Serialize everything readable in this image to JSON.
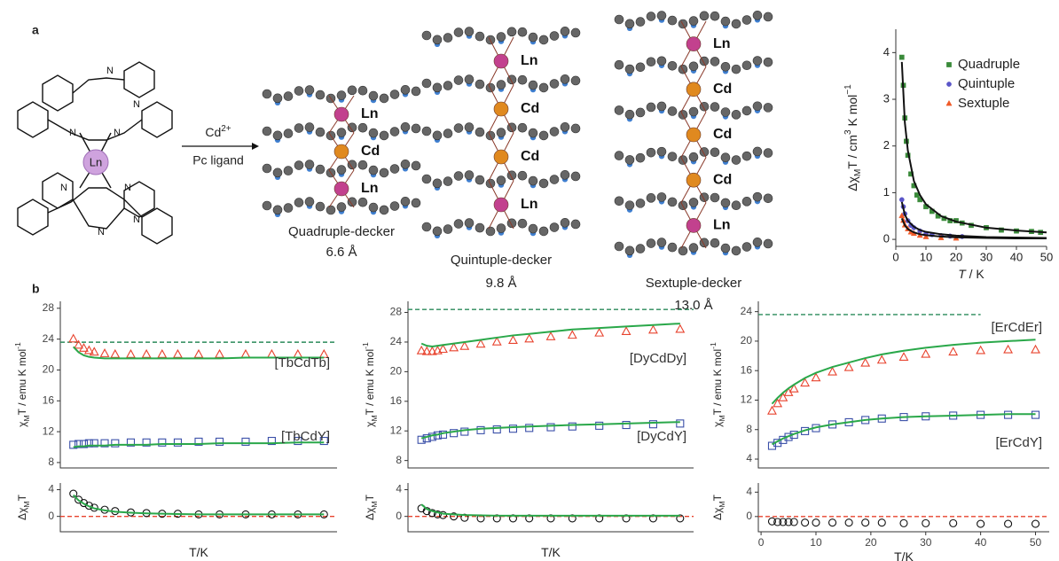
{
  "panels": [
    "a",
    "b"
  ],
  "molecule": {
    "center": "Ln",
    "atom": "N"
  },
  "reaction": {
    "reagent": "Cd",
    "charge": "2+",
    "ligand": "Pc ligand"
  },
  "metal_colors": {
    "Ln": "#c2418e",
    "Cd": "#e0891f"
  },
  "stacks": [
    {
      "caption": "Quadruple-decker",
      "distance": "6.6 Å",
      "metals": [
        "Ln",
        "Cd",
        "Ln"
      ]
    },
    {
      "caption": "Quintuple-decker",
      "distance": "9.8 Å",
      "metals": [
        "Ln",
        "Cd",
        "Cd",
        "Ln"
      ]
    },
    {
      "caption": "Sextuple-decker",
      "distance": "13.0 Å",
      "metals": [
        "Ln",
        "Cd",
        "Cd",
        "Cd",
        "Ln"
      ]
    }
  ],
  "chart_data": [
    {
      "type": "scatter",
      "xlim": [
        0,
        50
      ],
      "xticks": [
        0,
        10,
        20,
        30,
        40,
        50
      ],
      "ylim": [
        -0.15,
        4.5
      ],
      "yticks": [
        0,
        1,
        2,
        3,
        4
      ],
      "xlabel": [
        {
          "text": "T",
          "style": "italic"
        },
        {
          "text": " / K"
        }
      ],
      "ylabel": [
        {
          "text": "Δχ"
        },
        {
          "text": "M",
          "style": "sub"
        },
        {
          "text": "T / cm"
        },
        {
          "text": "3",
          "style": "sup"
        },
        {
          "text": " K mol"
        },
        {
          "text": "−1",
          "style": "sup"
        }
      ],
      "legend": "top-right",
      "series": [
        {
          "name": "Quadruple",
          "color": "#3a8a3a",
          "marker": "square",
          "x": [
            2,
            2.5,
            3,
            3.5,
            4,
            5,
            6,
            7,
            8,
            10,
            12,
            14,
            16,
            18,
            20,
            22,
            25,
            30,
            35,
            40,
            45,
            48
          ],
          "values": [
            3.9,
            3.3,
            2.6,
            2.1,
            1.8,
            1.4,
            1.15,
            0.95,
            0.85,
            0.7,
            0.6,
            0.5,
            0.45,
            0.4,
            0.4,
            0.35,
            0.3,
            0.25,
            0.2,
            0.18,
            0.17,
            0.15
          ]
        },
        {
          "name": "Quintuple",
          "color": "#5a55c8",
          "marker": "circle",
          "x": [
            2,
            2.5,
            3,
            4,
            5,
            6,
            8,
            10,
            12,
            15,
            18,
            22
          ],
          "values": [
            0.85,
            0.7,
            0.55,
            0.4,
            0.3,
            0.25,
            0.18,
            0.12,
            0.1,
            0.08,
            0.07,
            0.06
          ]
        },
        {
          "name": "Sextuple",
          "color": "#f05a28",
          "marker": "triangle",
          "x": [
            2,
            2.5,
            3,
            4,
            5,
            6,
            8,
            10,
            15,
            20
          ],
          "values": [
            0.5,
            0.4,
            0.3,
            0.22,
            0.15,
            0.12,
            0.08,
            0.05,
            0.03,
            0.02
          ]
        },
        {
          "color": "#111111",
          "marker": "line",
          "x": [
            2,
            3,
            4,
            6,
            8,
            10,
            15,
            20,
            30,
            40,
            50
          ],
          "values": [
            3.8,
            2.5,
            1.9,
            1.25,
            0.95,
            0.75,
            0.5,
            0.38,
            0.25,
            0.19,
            0.15
          ]
        },
        {
          "color": "#111111",
          "marker": "line",
          "x": [
            2,
            3,
            4,
            6,
            8,
            10,
            15,
            20,
            30,
            40,
            50
          ],
          "values": [
            0.8,
            0.53,
            0.4,
            0.27,
            0.2,
            0.16,
            0.11,
            0.08,
            0.05,
            0.04,
            0.03
          ]
        },
        {
          "color": "#111111",
          "marker": "line",
          "x": [
            2,
            3,
            4,
            6,
            8,
            10,
            15,
            20,
            30,
            40,
            50
          ],
          "values": [
            0.45,
            0.3,
            0.22,
            0.15,
            0.11,
            0.09,
            0.06,
            0.045,
            0.03,
            0.02,
            0.02
          ]
        }
      ]
    },
    {
      "type": "scatter",
      "xlim": [
        -0.5,
        52.5
      ],
      "ylim": [
        7.3,
        28.9
      ],
      "yticks": [
        8,
        12,
        16,
        20,
        24,
        28
      ],
      "ylabel": [
        {
          "text": "χ"
        },
        {
          "text": "M",
          "style": "sub"
        },
        {
          "text": "T / emu K mol"
        },
        {
          "text": "-1",
          "style": "sup"
        }
      ],
      "hline": 23.6,
      "hline_color": "#2a8a5a",
      "annotations": [
        "[TbCdTb]",
        "[TbCdY]"
      ],
      "x": [
        2,
        3,
        4,
        5,
        6,
        8,
        10,
        13,
        16,
        19,
        22,
        26,
        30,
        35,
        40,
        45,
        50
      ],
      "series": [
        {
          "color": "#e8432e",
          "marker": "triangle",
          "hollow": true,
          "values": [
            24,
            23.2,
            22.8,
            22.5,
            22.3,
            22.1,
            22,
            22,
            22,
            22,
            22,
            22,
            22,
            22,
            22,
            22,
            22
          ]
        },
        {
          "color": "#2aa84a",
          "marker": "line",
          "values": [
            23,
            22.3,
            21.9,
            21.7,
            21.6,
            21.5,
            21.5,
            21.5,
            21.5,
            21.5,
            21.5,
            21.5,
            21.5,
            21.6,
            21.6,
            21.6,
            21.6
          ]
        },
        {
          "color": "#3a4fa8",
          "marker": "square",
          "hollow": true,
          "values": [
            10.3,
            10.4,
            10.4,
            10.5,
            10.5,
            10.5,
            10.5,
            10.6,
            10.6,
            10.6,
            10.6,
            10.7,
            10.7,
            10.7,
            10.8,
            10.8,
            10.8
          ]
        },
        {
          "color": "#2aa84a",
          "marker": "line",
          "values": [
            10,
            10.1,
            10.1,
            10.2,
            10.2,
            10.2,
            10.3,
            10.3,
            10.3,
            10.4,
            10.4,
            10.4,
            10.5,
            10.5,
            10.5,
            10.6,
            10.6
          ]
        }
      ]
    },
    {
      "type": "scatter",
      "xlim": [
        -0.5,
        52.5
      ],
      "ylim": [
        -2.3,
        5
      ],
      "yticks": [
        0,
        4
      ],
      "ylabel": [
        {
          "text": "Δχ"
        },
        {
          "text": "M",
          "style": "sub"
        },
        {
          "text": "T"
        }
      ],
      "xlabel": [
        {
          "text": "T/K"
        }
      ],
      "hline": 0,
      "hline_color": "#e8432e",
      "x": [
        2,
        3,
        4,
        5,
        6,
        8,
        10,
        13,
        16,
        19,
        22,
        26,
        30,
        35,
        40,
        45,
        50
      ],
      "series": [
        {
          "color": "#111111",
          "marker": "circle",
          "hollow": true,
          "values": [
            3.4,
            2.5,
            2,
            1.6,
            1.3,
            1,
            0.8,
            0.6,
            0.5,
            0.4,
            0.4,
            0.3,
            0.3,
            0.3,
            0.3,
            0.3,
            0.3
          ]
        },
        {
          "color": "#2aa84a",
          "marker": "line",
          "values": [
            3.2,
            2.4,
            1.9,
            1.5,
            1.2,
            0.9,
            0.7,
            0.55,
            0.45,
            0.4,
            0.35,
            0.3,
            0.3,
            0.3,
            0.3,
            0.3,
            0.3
          ]
        }
      ]
    },
    {
      "type": "scatter",
      "xlim": [
        -0.5,
        52.5
      ],
      "ylim": [
        7,
        29.5
      ],
      "yticks": [
        8,
        12,
        16,
        20,
        24,
        28
      ],
      "ylabel": [
        {
          "text": "χ"
        },
        {
          "text": "M",
          "style": "sub"
        },
        {
          "text": "T / emu K mol"
        },
        {
          "text": "-1",
          "style": "sup"
        }
      ],
      "hline": 28.4,
      "hline_color": "#2a8a5a",
      "annotations": [
        "[DyCdDy]",
        "[DyCdY]"
      ],
      "x": [
        2,
        3,
        4,
        5,
        6,
        8,
        10,
        13,
        16,
        19,
        22,
        26,
        30,
        35,
        40,
        45,
        50
      ],
      "series": [
        {
          "color": "#e8432e",
          "marker": "triangle",
          "hollow": true,
          "values": [
            22.8,
            22.7,
            22.7,
            22.8,
            23,
            23.2,
            23.4,
            23.7,
            24,
            24.2,
            24.4,
            24.7,
            24.9,
            25.2,
            25.4,
            25.6,
            25.7
          ]
        },
        {
          "color": "#2aa84a",
          "marker": "line",
          "values": [
            23.8,
            23.5,
            23.4,
            23.5,
            23.6,
            23.8,
            24,
            24.3,
            24.6,
            24.9,
            25.1,
            25.4,
            25.7,
            25.9,
            26.1,
            26.3,
            26.5
          ]
        },
        {
          "color": "#3a4fa8",
          "marker": "square",
          "hollow": true,
          "values": [
            10.8,
            11,
            11.2,
            11.4,
            11.5,
            11.7,
            11.9,
            12.1,
            12.2,
            12.3,
            12.4,
            12.5,
            12.6,
            12.7,
            12.8,
            12.9,
            13
          ]
        },
        {
          "color": "#2aa84a",
          "marker": "line",
          "values": [
            11,
            11.2,
            11.4,
            11.5,
            11.7,
            11.9,
            12.1,
            12.3,
            12.4,
            12.5,
            12.6,
            12.7,
            12.8,
            12.9,
            13,
            13.1,
            13.2
          ]
        }
      ]
    },
    {
      "type": "scatter",
      "xlim": [
        -0.5,
        52.5
      ],
      "ylim": [
        -2.3,
        5
      ],
      "yticks": [
        0,
        4
      ],
      "ylabel": [
        {
          "text": "Δχ"
        },
        {
          "text": "M",
          "style": "sub"
        },
        {
          "text": "T"
        }
      ],
      "xlabel": [
        {
          "text": "T/K"
        }
      ],
      "hline": 0,
      "hline_color": "#e8432e",
      "x": [
        2,
        3,
        4,
        5,
        6,
        8,
        10,
        13,
        16,
        19,
        22,
        26,
        30,
        35,
        40,
        45,
        50
      ],
      "series": [
        {
          "color": "#111111",
          "marker": "circle",
          "hollow": true,
          "values": [
            1.2,
            0.8,
            0.5,
            0.3,
            0.2,
            0,
            -0.2,
            -0.3,
            -0.3,
            -0.3,
            -0.3,
            -0.3,
            -0.3,
            -0.3,
            -0.3,
            -0.3,
            -0.3
          ]
        },
        {
          "color": "#2aa84a",
          "marker": "line",
          "values": [
            1.8,
            1.1,
            0.8,
            0.6,
            0.4,
            0.3,
            0.2,
            0.15,
            0.1,
            0.1,
            0.1,
            0.1,
            0.1,
            0.1,
            0.1,
            0.1,
            0.1
          ]
        }
      ]
    },
    {
      "type": "scatter",
      "xlim": [
        -0.5,
        52.5
      ],
      "ylim": [
        2.8,
        25.4
      ],
      "yticks": [
        4,
        8,
        12,
        16,
        20,
        24
      ],
      "ylabel": [
        {
          "text": "χ"
        },
        {
          "text": "M",
          "style": "sub"
        },
        {
          "text": "T / emu K mol"
        },
        {
          "text": "-1",
          "style": "sup"
        }
      ],
      "hline": 23.6,
      "hline_xmax": 40,
      "hline_color": "#2a8a5a",
      "annotations": [
        "[ErCdEr]",
        "[ErCdY]"
      ],
      "x": [
        2,
        3,
        4,
        5,
        6,
        8,
        10,
        13,
        16,
        19,
        22,
        26,
        30,
        35,
        40,
        45,
        50
      ],
      "series": [
        {
          "color": "#e8432e",
          "marker": "triangle",
          "hollow": true,
          "values": [
            10.5,
            11.5,
            12.3,
            13,
            13.5,
            14.3,
            15,
            15.8,
            16.4,
            17,
            17.4,
            17.8,
            18.2,
            18.5,
            18.7,
            18.8,
            18.8
          ]
        },
        {
          "color": "#2aa84a",
          "marker": "line",
          "values": [
            11.5,
            12.3,
            13,
            13.6,
            14.1,
            15,
            15.7,
            16.5,
            17.1,
            17.7,
            18.2,
            18.7,
            19.1,
            19.5,
            19.8,
            20,
            20.2
          ]
        },
        {
          "color": "#3a4fa8",
          "marker": "square",
          "hollow": true,
          "values": [
            5.8,
            6.2,
            6.6,
            7,
            7.3,
            7.8,
            8.2,
            8.7,
            9,
            9.3,
            9.5,
            9.7,
            9.8,
            9.9,
            10,
            10,
            10
          ]
        },
        {
          "color": "#2aa84a",
          "marker": "line",
          "values": [
            6,
            6.4,
            6.8,
            7.1,
            7.4,
            7.9,
            8.3,
            8.7,
            9,
            9.3,
            9.5,
            9.7,
            9.8,
            9.9,
            10,
            10.1,
            10.1
          ]
        }
      ]
    },
    {
      "type": "scatter",
      "xlim": [
        -0.5,
        52.5
      ],
      "xticks": [
        0,
        10,
        20,
        30,
        40,
        50
      ],
      "ylim": [
        -2.5,
        5.5
      ],
      "yticks": [
        0,
        4
      ],
      "ylabel": [
        {
          "text": "Δχ"
        },
        {
          "text": "M",
          "style": "sub"
        },
        {
          "text": "T"
        }
      ],
      "xlabel": [
        {
          "text": "T/K"
        }
      ],
      "hline": 0,
      "hline_color": "#e8432e",
      "x": [
        2,
        3,
        4,
        5,
        6,
        8,
        10,
        13,
        16,
        19,
        22,
        26,
        30,
        35,
        40,
        45,
        50
      ],
      "series": [
        {
          "color": "#111111",
          "marker": "circle",
          "hollow": true,
          "values": [
            -0.8,
            -0.9,
            -0.9,
            -0.9,
            -0.9,
            -1,
            -1,
            -1,
            -1,
            -1,
            -1,
            -1.1,
            -1.1,
            -1.1,
            -1.2,
            -1.2,
            -1.2
          ]
        }
      ]
    }
  ]
}
